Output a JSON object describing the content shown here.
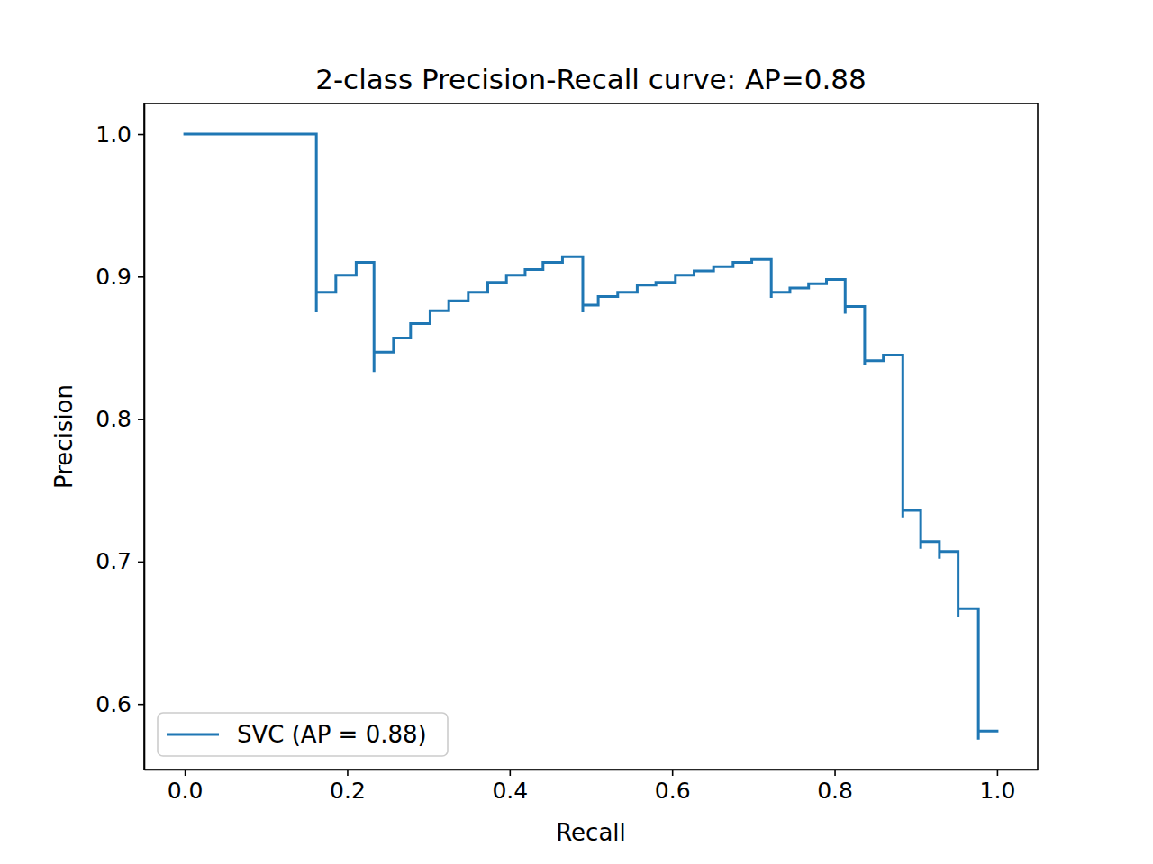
{
  "chart_data": {
    "type": "line",
    "title": "2-class Precision-Recall curve: AP=0.88",
    "x_label": "Recall",
    "y_label": "Precision",
    "x": [
      0,
      0.162,
      0.162,
      0.186,
      0.211,
      0.233,
      0.233,
      0.257,
      0.278,
      0.302,
      0.325,
      0.349,
      0.373,
      0.396,
      0.419,
      0.441,
      0.465,
      0.49,
      0.49,
      0.509,
      0.533,
      0.557,
      0.58,
      0.604,
      0.627,
      0.651,
      0.675,
      0.698,
      0.722,
      0.722,
      0.745,
      0.768,
      0.79,
      0.813,
      0.813,
      0.837,
      0.837,
      0.86,
      0.884,
      0.884,
      0.906,
      0.906,
      0.929,
      0.929,
      0.952,
      0.952,
      0.977,
      0.977,
      1.0
    ],
    "series": [
      {
        "name": "SVC (AP = 0.88)",
        "color": "#1f77b4",
        "line_style": "steps-post",
        "values": [
          1.0,
          0.875,
          0.889,
          0.901,
          0.91,
          0.833,
          0.847,
          0.857,
          0.867,
          0.876,
          0.883,
          0.889,
          0.896,
          0.901,
          0.905,
          0.91,
          0.914,
          0.875,
          0.88,
          0.886,
          0.889,
          0.894,
          0.896,
          0.901,
          0.904,
          0.907,
          0.91,
          0.912,
          0.885,
          0.889,
          0.892,
          0.895,
          0.898,
          0.874,
          0.879,
          0.838,
          0.841,
          0.845,
          0.731,
          0.736,
          0.709,
          0.714,
          0.702,
          0.707,
          0.661,
          0.667,
          0.575,
          0.581,
          0.581
        ]
      }
    ],
    "xlim": [
      -0.05,
      1.05
    ],
    "ylim": [
      0.554,
      1.0215
    ],
    "xticks": [
      {
        "value": 0,
        "label": "0.0"
      },
      0.2,
      0.4,
      0.6,
      0.8,
      {
        "value": 1,
        "label": "1.0"
      }
    ],
    "yticks": [
      0.6,
      0.7,
      0.8,
      0.9,
      {
        "value": 1,
        "label": "1.0"
      }
    ],
    "grid": false,
    "legend": "lower left"
  }
}
